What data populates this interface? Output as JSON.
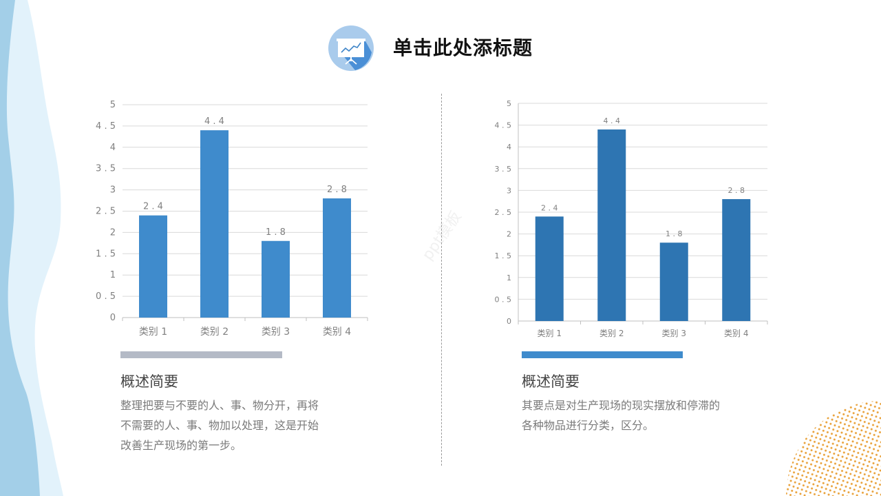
{
  "header": {
    "title": "单击此处添标题",
    "icon": "presentation-chart-icon"
  },
  "colors": {
    "accent_blue": "#3f8bcc",
    "accent_blue_dark": "#2e75b2",
    "accent_gray": "#b4bac6",
    "wave_dark": "#a3cfe8",
    "wave_light": "#e2f2fb",
    "dots": "#e9a23b"
  },
  "left_panel": {
    "heading": "概述简要",
    "lines": [
      "整理把要与不要的人、事、物分开，再将",
      "不需要的人、事、物加以处理，这是开始",
      "改善生产现场的第一步。"
    ]
  },
  "right_panel": {
    "heading": "概述简要",
    "lines": [
      "其要点是对生产现场的现实摆放和停滞的",
      "各种物品进行分类，区分。"
    ]
  },
  "watermark": "ppt模板",
  "chart_data": [
    {
      "type": "bar",
      "title": "",
      "categories": [
        "类别 1",
        "类别 2",
        "类别 3",
        "类别 4"
      ],
      "values": [
        2.4,
        4.4,
        1.8,
        2.8
      ],
      "value_labels": [
        "2.4",
        "4.4",
        "1.8",
        "2.8"
      ],
      "yticks": [
        "0",
        "0.5",
        "1",
        "1.5",
        "2",
        "2.5",
        "3",
        "3.5",
        "4",
        "4.5",
        "5"
      ],
      "xlabel": "",
      "ylabel": "",
      "ylim": [
        0,
        5
      ],
      "grid": true,
      "legend": "none",
      "color": "#3f8bcc"
    },
    {
      "type": "bar",
      "title": "",
      "categories": [
        "类别 1",
        "类别 2",
        "类别 3",
        "类别 4"
      ],
      "values": [
        2.4,
        4.4,
        1.8,
        2.8
      ],
      "value_labels": [
        "2.4",
        "4.4",
        "1.8",
        "2.8"
      ],
      "yticks": [
        "0",
        "0.5",
        "1",
        "1.5",
        "2",
        "2.5",
        "3",
        "3.5",
        "4",
        "4.5",
        "5"
      ],
      "xlabel": "",
      "ylabel": "",
      "ylim": [
        0,
        5
      ],
      "grid": true,
      "legend": "none",
      "color": "#2e75b2"
    }
  ]
}
